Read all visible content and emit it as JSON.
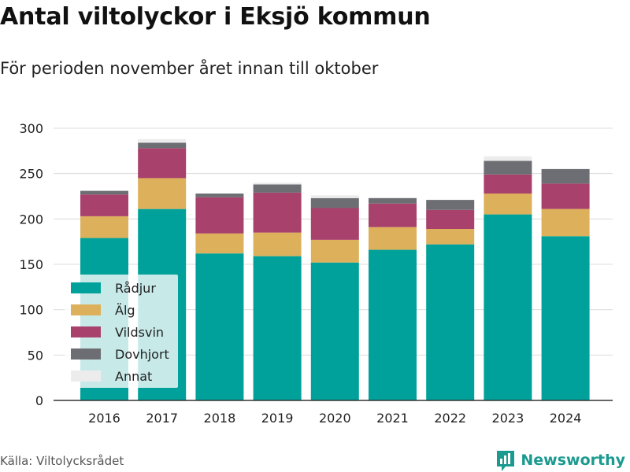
{
  "title": "Antal viltolyckor i Eksjö kommun",
  "subtitle": "För perioden november året innan till oktober",
  "source": "Källa: Viltolycksrådet",
  "brand": "Newsworthy",
  "chart_data": {
    "type": "bar",
    "stacked": true,
    "categories": [
      "2016",
      "2017",
      "2018",
      "2019",
      "2020",
      "2021",
      "2022",
      "2023",
      "2024"
    ],
    "series": [
      {
        "name": "Rådjur",
        "color": "#00a19a",
        "values": [
          179,
          211,
          162,
          159,
          152,
          166,
          172,
          205,
          181
        ]
      },
      {
        "name": "Älg",
        "color": "#ddb05b",
        "values": [
          24,
          34,
          22,
          26,
          25,
          25,
          17,
          23,
          30
        ]
      },
      {
        "name": "Vildsvin",
        "color": "#a8416b",
        "values": [
          24,
          33,
          40,
          44,
          35,
          26,
          21,
          21,
          28
        ]
      },
      {
        "name": "Dovhjort",
        "color": "#6d6e73",
        "values": [
          4,
          6,
          4,
          9,
          11,
          6,
          11,
          15,
          16
        ]
      },
      {
        "name": "Annat",
        "color": "#ececec",
        "values": [
          0,
          4,
          0,
          2,
          3,
          0,
          0,
          5,
          0
        ]
      }
    ],
    "yticks": [
      0,
      50,
      100,
      150,
      200,
      250,
      300
    ],
    "ylim": [
      0,
      300
    ],
    "grid": true,
    "legend_position": "bottom-left"
  }
}
